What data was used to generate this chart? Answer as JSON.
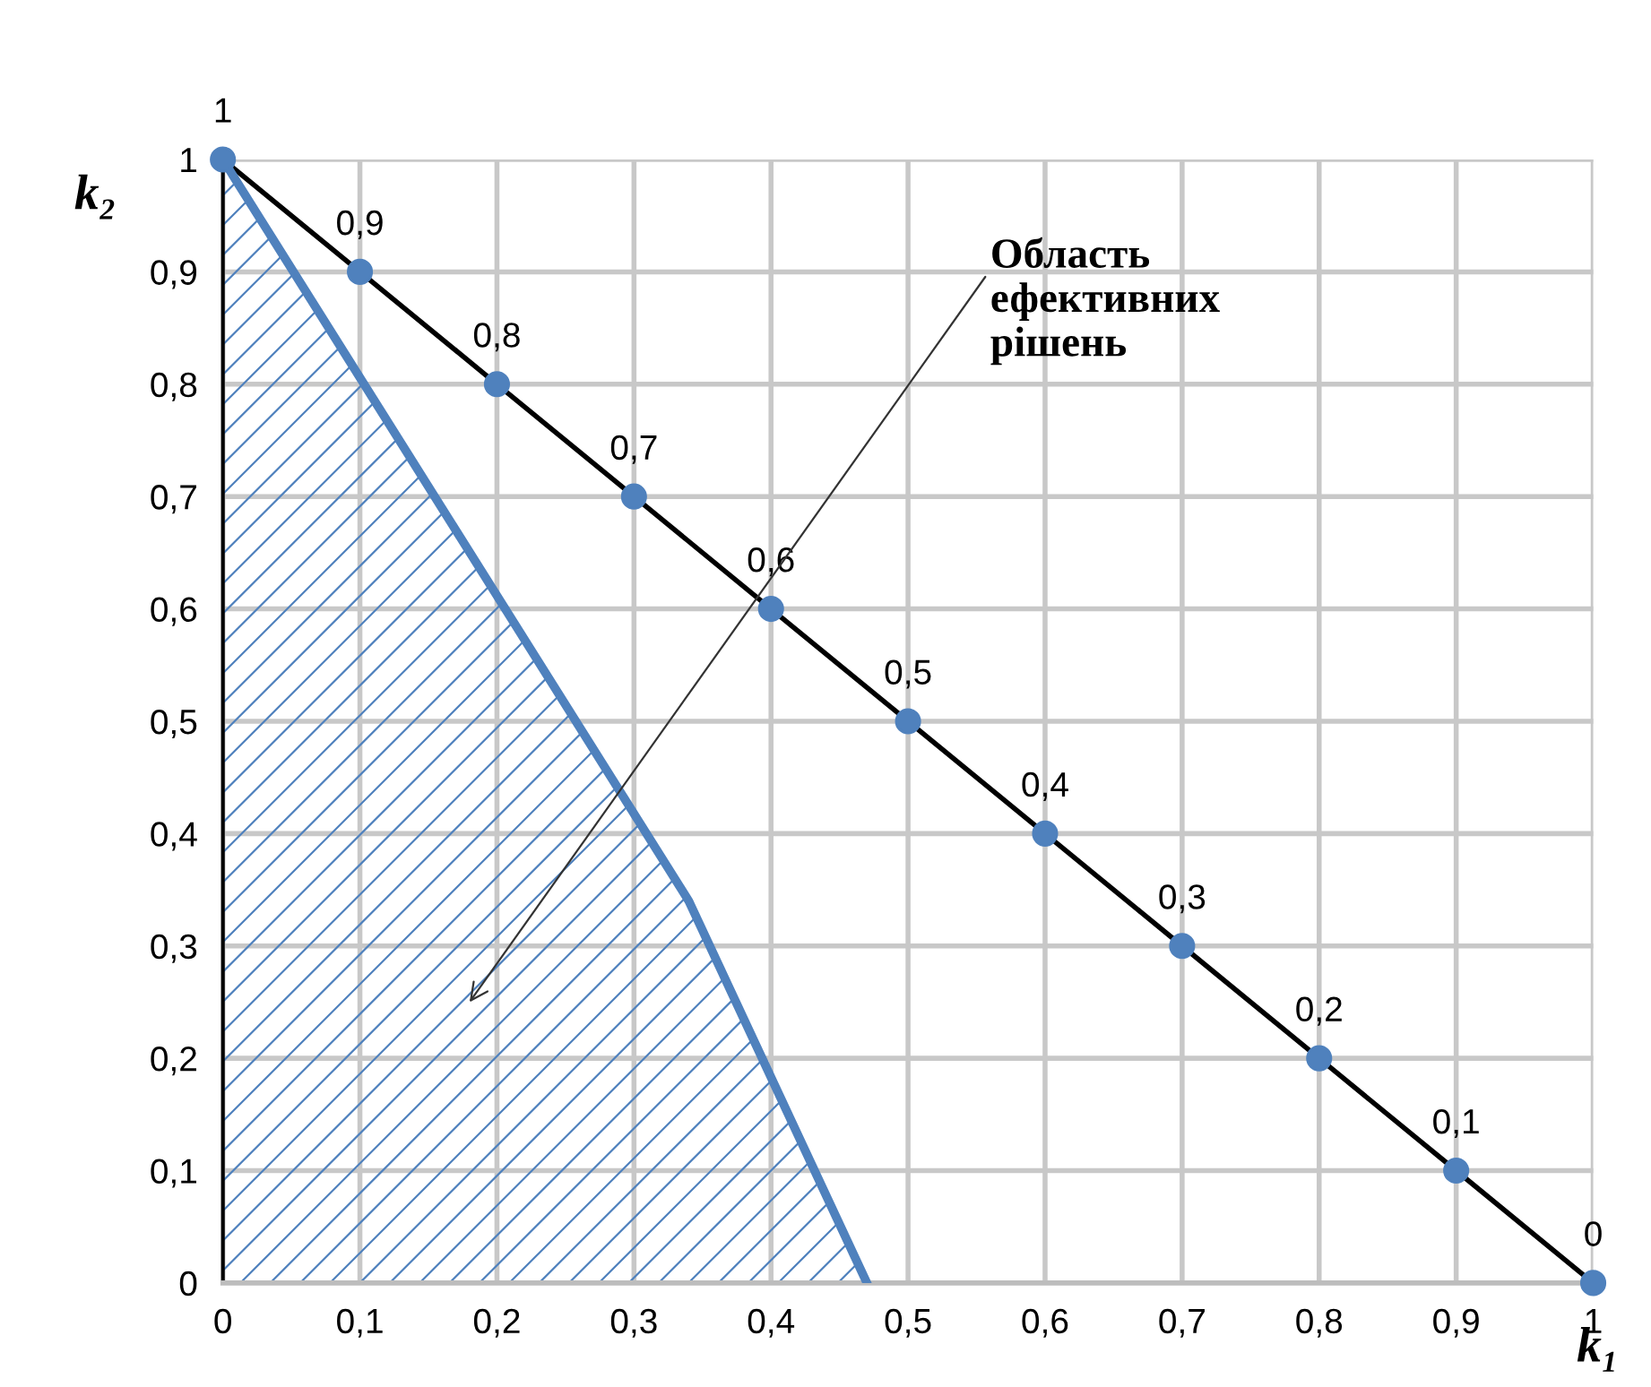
{
  "chart_data": {
    "type": "line",
    "xlabel": "k₁",
    "ylabel": "k₂",
    "xlim": [
      0,
      1
    ],
    "ylim": [
      0,
      1
    ],
    "xticks": [
      0,
      {
        "value": 0.1,
        "label": "0,1"
      },
      {
        "value": 0.2,
        "label": "0,2"
      },
      {
        "value": 0.3,
        "label": "0,3"
      },
      {
        "value": 0.4,
        "label": "0,4"
      },
      {
        "value": 0.5,
        "label": "0,5"
      },
      {
        "value": 0.6,
        "label": "0,6"
      },
      {
        "value": 0.7,
        "label": "0,7"
      },
      {
        "value": 0.8,
        "label": "0,8"
      },
      {
        "value": 0.9,
        "label": "0,9"
      },
      1
    ],
    "yticks": [
      0,
      {
        "value": 0.1,
        "label": "0,1"
      },
      {
        "value": 0.2,
        "label": "0,2"
      },
      {
        "value": 0.3,
        "label": "0,3"
      },
      {
        "value": 0.4,
        "label": "0,4"
      },
      {
        "value": 0.5,
        "label": "0,5"
      },
      {
        "value": 0.6,
        "label": "0,6"
      },
      {
        "value": 0.7,
        "label": "0,7"
      },
      {
        "value": 0.8,
        "label": "0,8"
      },
      {
        "value": 0.9,
        "label": "0,9"
      },
      1
    ],
    "grid": true,
    "legend": false,
    "series": [
      {
        "color": "#000000",
        "marker": "circle",
        "colors": [
          "#4f81bd",
          "#4f81bd",
          "#4f81bd",
          "#4f81bd",
          "#4f81bd",
          "#4f81bd",
          "#4f81bd",
          "#4f81bd",
          "#4f81bd",
          "#4f81bd",
          "#4f81bd"
        ],
        "x": [
          0,
          0.1,
          0.2,
          0.3,
          0.4,
          0.5,
          0.6,
          0.7,
          0.8,
          0.9,
          1
        ],
        "values": [
          1,
          0.9,
          0.8,
          0.7,
          0.6,
          0.5,
          0.4,
          0.3,
          0.2,
          0.1,
          0
        ],
        "value_labels": [
          "1",
          "0,9",
          "0,8",
          "0,7",
          "0,6",
          "0,5",
          "0,4",
          "0,3",
          "0,2",
          "0,1",
          "0"
        ]
      },
      {
        "type": "area",
        "color": "#4f81bd",
        "marker": "none",
        "x": [
          0,
          0.34,
          0.47
        ],
        "values": [
          1,
          0.34,
          0
        ]
      }
    ],
    "annotations": [
      "Область\nефективних\nрішень"
    ]
  }
}
